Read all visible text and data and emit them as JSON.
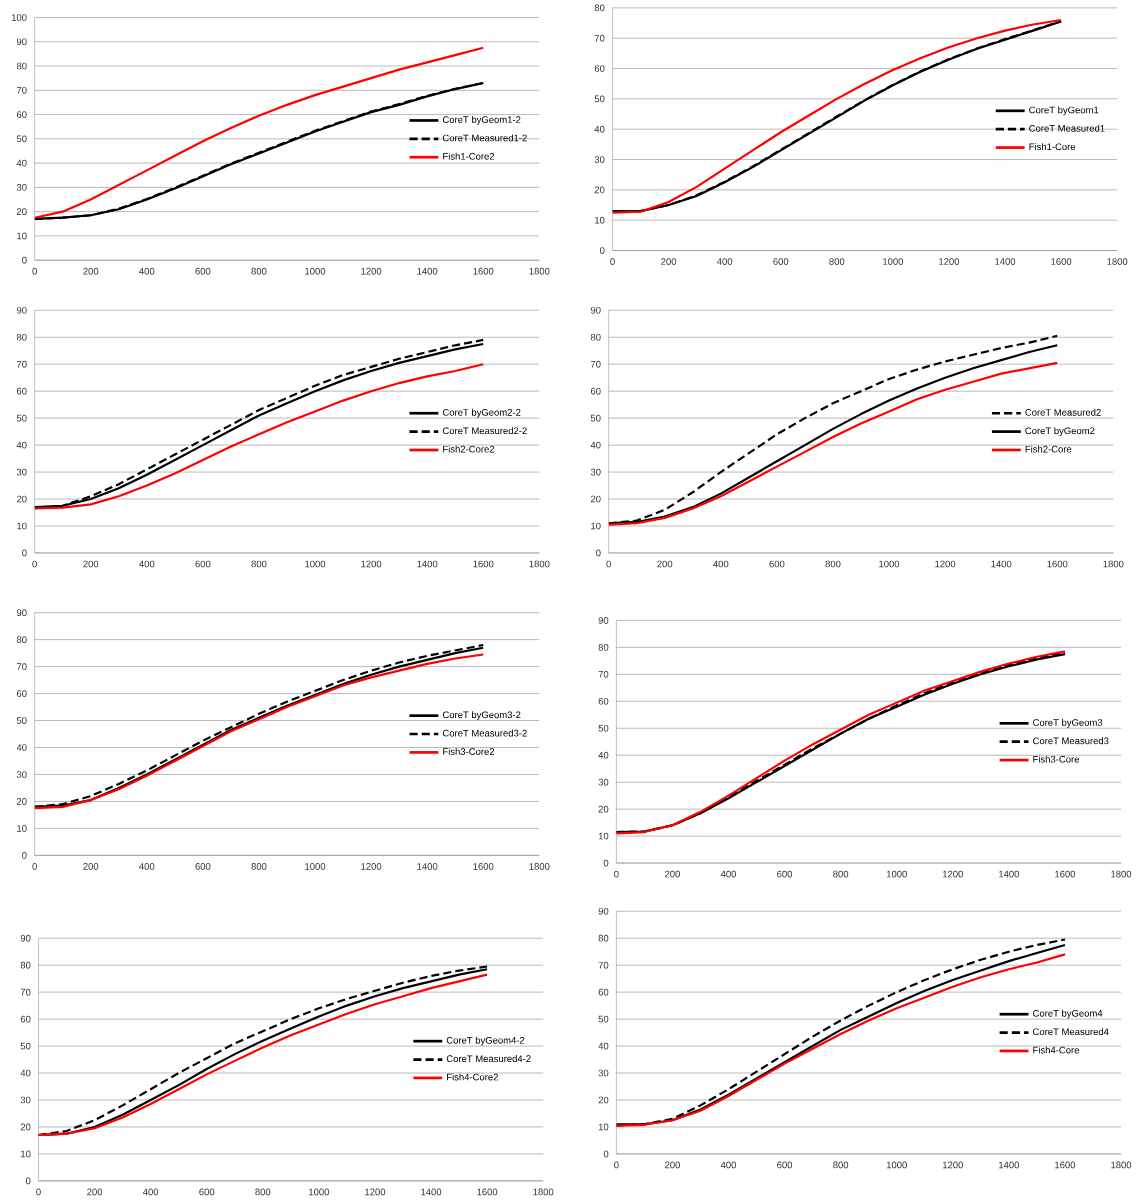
{
  "chart_data": [
    {
      "type": "line",
      "x": [
        0,
        100,
        200,
        300,
        400,
        500,
        600,
        700,
        800,
        900,
        1000,
        1100,
        1200,
        1300,
        1400,
        1500,
        1600
      ],
      "xlim": [
        0,
        1800
      ],
      "ylim": [
        0,
        100
      ],
      "xticks": [
        0,
        200,
        400,
        600,
        800,
        1000,
        1200,
        1400,
        1600,
        1800
      ],
      "yticks": [
        0,
        10,
        20,
        30,
        40,
        50,
        60,
        70,
        80,
        90,
        100
      ],
      "grid": "y",
      "legend": "right",
      "series": [
        {
          "name": "CoreT byGeom1-2",
          "color": "#000000",
          "line_style": "solid",
          "values": [
            17,
            17.5,
            18.5,
            21,
            25,
            29.5,
            34.5,
            39.5,
            44,
            48.5,
            53,
            57,
            61,
            64,
            67.5,
            70.5,
            73
          ]
        },
        {
          "name": "CoreT Measured1-2",
          "color": "#000000",
          "line_style": "dashed",
          "values": [
            17,
            17.5,
            18.5,
            21.2,
            25.2,
            29.8,
            34.8,
            39.8,
            44.3,
            48.8,
            53.3,
            57.3,
            61.2,
            64.3,
            67.7,
            70.6,
            73
          ]
        },
        {
          "name": "Fish1-Core2",
          "color": "#ff0000",
          "line_style": "solid",
          "values": [
            17.5,
            20,
            25,
            31,
            37,
            43,
            49,
            54.5,
            59.5,
            64,
            68,
            71.5,
            75,
            78.5,
            81.5,
            84.5,
            87.5
          ]
        }
      ]
    },
    {
      "type": "line",
      "x": [
        0,
        100,
        200,
        300,
        400,
        500,
        600,
        700,
        800,
        900,
        1000,
        1100,
        1200,
        1300,
        1400,
        1500,
        1600
      ],
      "xlim": [
        0,
        1800
      ],
      "ylim": [
        0,
        80
      ],
      "xticks": [
        0,
        200,
        400,
        600,
        800,
        1000,
        1200,
        1400,
        1600,
        1800
      ],
      "yticks": [
        0,
        10,
        20,
        30,
        40,
        50,
        60,
        70,
        80
      ],
      "grid": "y",
      "legend": "right",
      "series": [
        {
          "name": "CoreT byGeom1",
          "color": "#000000",
          "line_style": "solid",
          "values": [
            13,
            13,
            15,
            18,
            22.5,
            27.5,
            33,
            38.5,
            44,
            49.5,
            54.5,
            59,
            63,
            66.5,
            69.5,
            72.5,
            75.5
          ]
        },
        {
          "name": "CoreT Measured1",
          "color": "#000000",
          "line_style": "dashed",
          "values": [
            13,
            13,
            15,
            18.2,
            22.7,
            27.7,
            33.2,
            38.7,
            44.2,
            49.6,
            54.6,
            59.1,
            63.1,
            66.6,
            69.7,
            72.6,
            75.6
          ]
        },
        {
          "name": "Fish1-Core",
          "color": "#ff0000",
          "line_style": "solid",
          "values": [
            12.5,
            12.8,
            16,
            21,
            27,
            33,
            39,
            44.5,
            50,
            55,
            59.5,
            63.5,
            67,
            70,
            72.5,
            74.5,
            76
          ]
        }
      ]
    },
    {
      "type": "line",
      "x": [
        0,
        100,
        200,
        300,
        400,
        500,
        600,
        700,
        800,
        900,
        1000,
        1100,
        1200,
        1300,
        1400,
        1500,
        1600
      ],
      "xlim": [
        0,
        1800
      ],
      "ylim": [
        0,
        90
      ],
      "xticks": [
        0,
        200,
        400,
        600,
        800,
        1000,
        1200,
        1400,
        1600,
        1800
      ],
      "yticks": [
        0,
        10,
        20,
        30,
        40,
        50,
        60,
        70,
        80,
        90
      ],
      "grid": "y",
      "legend": "right",
      "series": [
        {
          "name": "CoreT byGeom2-2",
          "color": "#000000",
          "line_style": "solid",
          "values": [
            17,
            17.5,
            20,
            24,
            29,
            34.5,
            40,
            45.5,
            51,
            55.5,
            60,
            64,
            67.5,
            70.5,
            73,
            75.5,
            77.5
          ]
        },
        {
          "name": "CoreT Measured2-2",
          "color": "#000000",
          "line_style": "dashed",
          "values": [
            16.5,
            17.5,
            21,
            25.5,
            31,
            36.5,
            42,
            47.5,
            53,
            57.5,
            62,
            66,
            69,
            72,
            74.5,
            77,
            79
          ]
        },
        {
          "name": "Fish2-Core2",
          "color": "#ff0000",
          "line_style": "solid",
          "values": [
            16.5,
            16.8,
            18,
            21,
            25,
            29.5,
            34.5,
            39.5,
            44,
            48.5,
            52.5,
            56.5,
            60,
            63,
            65.5,
            67.5,
            70
          ]
        }
      ]
    },
    {
      "type": "line",
      "x": [
        0,
        100,
        200,
        300,
        400,
        500,
        600,
        700,
        800,
        900,
        1000,
        1100,
        1200,
        1300,
        1400,
        1500,
        1600
      ],
      "xlim": [
        0,
        1800
      ],
      "ylim": [
        0,
        90
      ],
      "xticks": [
        0,
        200,
        400,
        600,
        800,
        1000,
        1200,
        1400,
        1600,
        1800
      ],
      "yticks": [
        0,
        10,
        20,
        30,
        40,
        50,
        60,
        70,
        80,
        90
      ],
      "grid": "y",
      "legend": "right",
      "series": [
        {
          "name": "CoreT Measured2",
          "color": "#000000",
          "line_style": "dashed",
          "values": [
            11,
            12,
            16,
            22.5,
            30,
            37,
            44,
            50,
            55.5,
            60,
            64.5,
            68,
            71,
            73.5,
            76,
            78,
            80.5
          ]
        },
        {
          "name": "CoreT byGeom2",
          "color": "#000000",
          "line_style": "solid",
          "values": [
            11,
            11.5,
            13.5,
            17,
            22,
            28,
            34,
            40,
            46,
            51.5,
            56.5,
            61,
            65,
            68.5,
            71.5,
            74.5,
            77
          ]
        },
        {
          "name": "Fish2-Core",
          "color": "#ff0000",
          "line_style": "solid",
          "values": [
            10.5,
            11,
            13,
            16.5,
            21,
            26.5,
            32,
            37.5,
            43,
            48,
            52.5,
            57,
            60.5,
            63.5,
            66.5,
            68.5,
            70.5
          ]
        }
      ]
    },
    {
      "type": "line",
      "x": [
        0,
        100,
        200,
        300,
        400,
        500,
        600,
        700,
        800,
        900,
        1000,
        1100,
        1200,
        1300,
        1400,
        1500,
        1600
      ],
      "xlim": [
        0,
        1800
      ],
      "ylim": [
        0,
        90
      ],
      "xticks": [
        0,
        200,
        400,
        600,
        800,
        1000,
        1200,
        1400,
        1600,
        1800
      ],
      "yticks": [
        0,
        10,
        20,
        30,
        40,
        50,
        60,
        70,
        80,
        90
      ],
      "grid": "y",
      "legend": "right",
      "series": [
        {
          "name": "CoreT byGeom3-2",
          "color": "#000000",
          "line_style": "solid",
          "values": [
            18,
            18.5,
            20.5,
            25,
            30,
            35.5,
            41,
            46.5,
            51,
            55.5,
            59.5,
            63.5,
            67,
            70,
            72.5,
            75,
            77
          ]
        },
        {
          "name": "CoreT Measured3-2",
          "color": "#000000",
          "line_style": "dashed",
          "values": [
            18,
            19,
            22,
            26.5,
            31.5,
            37,
            42.5,
            47.5,
            52.5,
            57,
            61,
            65,
            68.5,
            71.5,
            74,
            76,
            78
          ]
        },
        {
          "name": "Fish3-Core2",
          "color": "#ff0000",
          "line_style": "solid",
          "values": [
            17.5,
            18,
            20.5,
            24.5,
            29.5,
            35,
            40.5,
            46,
            50.5,
            55,
            59,
            63,
            66,
            68.5,
            71,
            73,
            74.5
          ]
        }
      ]
    },
    {
      "type": "line",
      "x": [
        0,
        100,
        200,
        300,
        400,
        500,
        600,
        700,
        800,
        900,
        1000,
        1100,
        1200,
        1300,
        1400,
        1500,
        1600
      ],
      "xlim": [
        0,
        1800
      ],
      "ylim": [
        0,
        90
      ],
      "xticks": [
        0,
        200,
        400,
        600,
        800,
        1000,
        1200,
        1400,
        1600,
        1800
      ],
      "yticks": [
        0,
        10,
        20,
        30,
        40,
        50,
        60,
        70,
        80,
        90
      ],
      "grid": "y",
      "legend": "right",
      "series": [
        {
          "name": "CoreT byGeom3",
          "color": "#000000",
          "line_style": "solid",
          "values": [
            11.5,
            11.7,
            14,
            18.5,
            24,
            30,
            36,
            42,
            48,
            53.5,
            58,
            62.5,
            66.5,
            70,
            73,
            75.5,
            77.5
          ]
        },
        {
          "name": "CoreT Measured3",
          "color": "#000000",
          "line_style": "dashed",
          "values": [
            11.5,
            11.7,
            14,
            18.5,
            24.5,
            30.5,
            36.5,
            42.5,
            48,
            53.5,
            58.5,
            63,
            67,
            70.5,
            73.5,
            76,
            78
          ]
        },
        {
          "name": "Fish3-Core",
          "color": "#ff0000",
          "line_style": "solid",
          "values": [
            11,
            11.5,
            14,
            19,
            25,
            31.5,
            38,
            44,
            49.5,
            55,
            59.5,
            64,
            67.5,
            71,
            74,
            76.5,
            78.5
          ]
        }
      ]
    },
    {
      "type": "line",
      "x": [
        0,
        100,
        200,
        300,
        400,
        500,
        600,
        700,
        800,
        900,
        1000,
        1100,
        1200,
        1300,
        1400,
        1500,
        1600
      ],
      "xlim": [
        0,
        1800
      ],
      "ylim": [
        0,
        90
      ],
      "xticks": [
        0,
        200,
        400,
        600,
        800,
        1000,
        1200,
        1400,
        1600,
        1800
      ],
      "yticks": [
        0,
        10,
        20,
        30,
        40,
        50,
        60,
        70,
        80,
        90
      ],
      "grid": "y",
      "legend": "right",
      "series": [
        {
          "name": "CoreT byGeom4-2",
          "color": "#000000",
          "line_style": "solid",
          "values": [
            17,
            17.5,
            20,
            24.5,
            30,
            35.5,
            41.5,
            47,
            52,
            56.5,
            61,
            65,
            68.5,
            71.5,
            74,
            76.5,
            78.5
          ]
        },
        {
          "name": "CoreT Measured4-2",
          "color": "#000000",
          "line_style": "dashed",
          "values": [
            17,
            18.5,
            22.5,
            28,
            34,
            40,
            45.5,
            51,
            55.5,
            60,
            64,
            67.5,
            70.5,
            73.5,
            76,
            78,
            79.5
          ]
        },
        {
          "name": "Fish4-Core2",
          "color": "#ff0000",
          "line_style": "solid",
          "values": [
            17,
            17.5,
            19.5,
            23.5,
            28.5,
            34,
            39.5,
            44.5,
            49.5,
            54,
            58,
            62,
            65.5,
            68.5,
            71.5,
            74,
            76.5
          ]
        }
      ]
    },
    {
      "type": "line",
      "x": [
        0,
        100,
        200,
        300,
        400,
        500,
        600,
        700,
        800,
        900,
        1000,
        1100,
        1200,
        1300,
        1400,
        1500,
        1600
      ],
      "xlim": [
        0,
        1800
      ],
      "ylim": [
        0,
        90
      ],
      "xticks": [
        0,
        200,
        400,
        600,
        800,
        1000,
        1200,
        1400,
        1600,
        1800
      ],
      "yticks": [
        0,
        10,
        20,
        30,
        40,
        50,
        60,
        70,
        80,
        90
      ],
      "grid": "y",
      "legend": "right",
      "series": [
        {
          "name": "CoreT byGeom4",
          "color": "#000000",
          "line_style": "solid",
          "values": [
            11,
            11,
            12.5,
            16.5,
            22,
            28,
            34,
            40,
            46,
            51,
            56,
            60.5,
            64.5,
            68,
            71.5,
            74.5,
            77.5
          ]
        },
        {
          "name": "CoreT Measured4",
          "color": "#000000",
          "line_style": "dashed",
          "values": [
            10.5,
            11,
            13,
            18,
            24,
            30.5,
            37,
            43.5,
            49.5,
            55,
            60,
            64.5,
            68.5,
            72,
            75,
            77.5,
            79.5
          ]
        },
        {
          "name": "Fish4-Core",
          "color": "#ff0000",
          "line_style": "solid",
          "values": [
            10.5,
            10.8,
            12.5,
            16,
            21.5,
            27.5,
            33.5,
            39,
            44.5,
            49.5,
            54,
            58,
            62,
            65.5,
            68.5,
            71,
            74
          ]
        }
      ]
    }
  ]
}
